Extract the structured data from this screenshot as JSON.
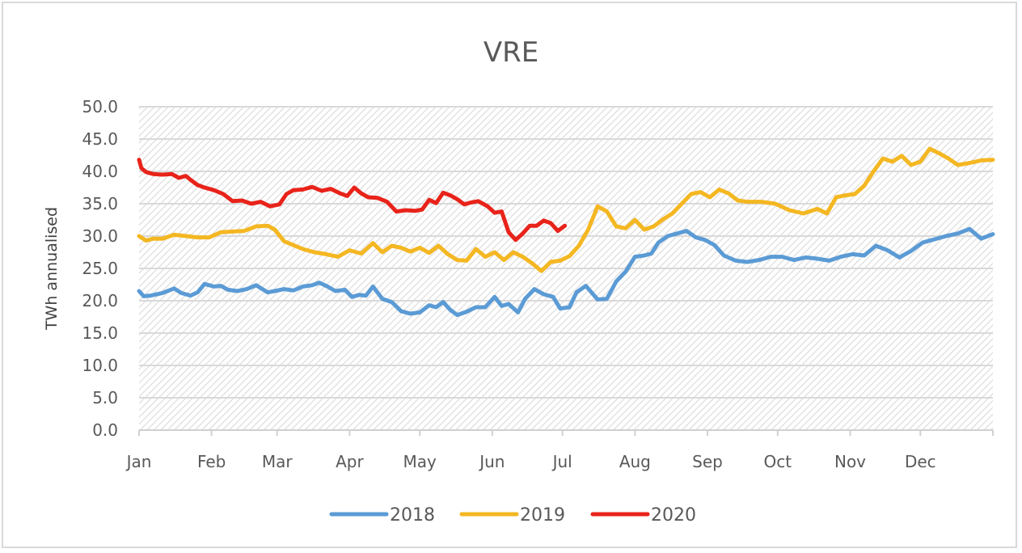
{
  "chart_data": {
    "type": "line",
    "title": "VRE",
    "xlabel": "",
    "ylabel": "TWh annualised",
    "ylim": [
      0,
      50
    ],
    "yticks": [
      "0.0",
      "5.0",
      "10.0",
      "15.0",
      "20.0",
      "25.0",
      "30.0",
      "35.0",
      "40.0",
      "45.0",
      "50.0"
    ],
    "ytick_values": [
      0,
      5,
      10,
      15,
      20,
      25,
      30,
      35,
      40,
      45,
      50
    ],
    "xlim": [
      0,
      365
    ],
    "x_unit": "day of year",
    "xticks": [
      "Jan",
      "Feb",
      "Mar",
      "Apr",
      "May",
      "Jun",
      "Jul",
      "Aug",
      "Sep",
      "Oct",
      "Nov",
      "Dec"
    ],
    "xtick_values": [
      0,
      31,
      59,
      90,
      120,
      151,
      181,
      212,
      243,
      273,
      304,
      334
    ],
    "grid": true,
    "legend_position": "bottom",
    "series": [
      {
        "name": "2018",
        "color": "#5b9bd5",
        "x": [
          0,
          2,
          5,
          10,
          15,
          18,
          22,
          25,
          28,
          32,
          35,
          38,
          42,
          46,
          50,
          55,
          58,
          62,
          66,
          70,
          74,
          77,
          80,
          84,
          88,
          91,
          94,
          97,
          100,
          104,
          108,
          112,
          116,
          120,
          124,
          127,
          130,
          133,
          136,
          140,
          144,
          148,
          152,
          155,
          158,
          162,
          165,
          169,
          173,
          177,
          180,
          184,
          187,
          191,
          196,
          200,
          204,
          208,
          212,
          216,
          219,
          222,
          226,
          230,
          234,
          238,
          242,
          246,
          250,
          255,
          260,
          265,
          270,
          275,
          280,
          285,
          290,
          295,
          300,
          305,
          310,
          315,
          320,
          325,
          330,
          335,
          340,
          345,
          350,
          355,
          360,
          365
        ],
        "y": [
          21.5,
          20.7,
          20.8,
          21.2,
          21.9,
          21.2,
          20.8,
          21.3,
          22.6,
          22.2,
          22.3,
          21.7,
          21.5,
          21.8,
          22.4,
          21.3,
          21.5,
          21.8,
          21.6,
          22.2,
          22.4,
          22.8,
          22.3,
          21.5,
          21.7,
          20.6,
          20.9,
          20.8,
          22.2,
          20.3,
          19.8,
          18.4,
          18.0,
          18.2,
          19.3,
          19.0,
          19.8,
          18.6,
          17.8,
          18.3,
          19.0,
          19.0,
          20.6,
          19.2,
          19.5,
          18.2,
          20.3,
          21.8,
          21.0,
          20.6,
          18.8,
          19.0,
          21.3,
          22.3,
          20.2,
          20.3,
          23.0,
          24.5,
          26.8,
          27.0,
          27.3,
          29.0,
          30.0,
          30.4,
          30.8,
          29.8,
          29.4,
          28.6,
          27.0,
          26.2,
          26.0,
          26.3,
          26.8,
          26.8,
          26.3,
          26.7,
          26.5,
          26.2,
          26.8,
          27.2,
          27.0,
          28.5,
          27.8,
          26.7,
          27.7,
          29.0,
          29.5,
          30.0,
          30.4,
          31.1,
          29.6,
          30.3
        ]
      },
      {
        "name": "2019",
        "color": "#f4b722",
        "x": [
          0,
          3,
          6,
          10,
          15,
          20,
          25,
          30,
          35,
          40,
          45,
          50,
          55,
          58,
          62,
          66,
          70,
          75,
          80,
          85,
          90,
          95,
          100,
          104,
          108,
          112,
          116,
          120,
          124,
          128,
          132,
          136,
          140,
          144,
          148,
          152,
          156,
          160,
          164,
          168,
          172,
          176,
          180,
          184,
          188,
          192,
          196,
          200,
          204,
          208,
          212,
          216,
          220,
          224,
          228,
          232,
          236,
          240,
          244,
          248,
          252,
          256,
          260,
          266,
          272,
          278,
          284,
          290,
          294,
          298,
          302,
          306,
          310,
          314,
          318,
          322,
          326,
          330,
          334,
          338,
          342,
          346,
          350,
          355,
          360,
          365
        ],
        "y": [
          30.0,
          29.3,
          29.6,
          29.6,
          30.2,
          30.0,
          29.8,
          29.8,
          30.6,
          30.7,
          30.8,
          31.5,
          31.6,
          31.0,
          29.2,
          28.6,
          28.0,
          27.5,
          27.2,
          26.8,
          27.8,
          27.3,
          28.9,
          27.5,
          28.5,
          28.2,
          27.6,
          28.2,
          27.4,
          28.5,
          27.2,
          26.3,
          26.2,
          28.0,
          26.8,
          27.5,
          26.3,
          27.5,
          26.8,
          25.8,
          24.6,
          26.0,
          26.2,
          26.9,
          28.5,
          31.0,
          34.6,
          33.8,
          31.5,
          31.2,
          32.5,
          31.0,
          31.5,
          32.6,
          33.5,
          35.0,
          36.5,
          36.8,
          36.0,
          37.2,
          36.6,
          35.5,
          35.3,
          35.3,
          35.0,
          34.0,
          33.5,
          34.2,
          33.5,
          36.0,
          36.3,
          36.5,
          37.8,
          40.0,
          42.0,
          41.5,
          42.4,
          41.0,
          41.5,
          43.5,
          42.8,
          42.0,
          41.0,
          41.3,
          41.7,
          41.8
        ]
      },
      {
        "name": "2020",
        "color": "#e8231a",
        "x": [
          0,
          1,
          3,
          6,
          10,
          14,
          17,
          20,
          22,
          25,
          28,
          32,
          36,
          40,
          44,
          48,
          52,
          56,
          60,
          63,
          66,
          70,
          74,
          78,
          82,
          86,
          89,
          92,
          95,
          98,
          102,
          106,
          110,
          114,
          118,
          121,
          124,
          127,
          130,
          133,
          136,
          139,
          142,
          145,
          149,
          152,
          155,
          158,
          161,
          164,
          167,
          170,
          173,
          176,
          179,
          182
        ],
        "y": [
          41.8,
          40.5,
          39.9,
          39.6,
          39.5,
          39.6,
          39.0,
          39.3,
          38.7,
          37.9,
          37.5,
          37.1,
          36.5,
          35.4,
          35.5,
          35.0,
          35.3,
          34.6,
          34.9,
          36.5,
          37.1,
          37.2,
          37.6,
          37.0,
          37.3,
          36.6,
          36.2,
          37.5,
          36.6,
          36.0,
          35.9,
          35.3,
          33.8,
          34.0,
          33.9,
          34.1,
          35.6,
          35.1,
          36.7,
          36.3,
          35.7,
          34.9,
          35.2,
          35.4,
          34.6,
          33.6,
          33.8,
          30.6,
          29.4,
          30.4,
          31.6,
          31.6,
          32.4,
          32.0,
          30.8,
          31.6
        ]
      }
    ]
  }
}
